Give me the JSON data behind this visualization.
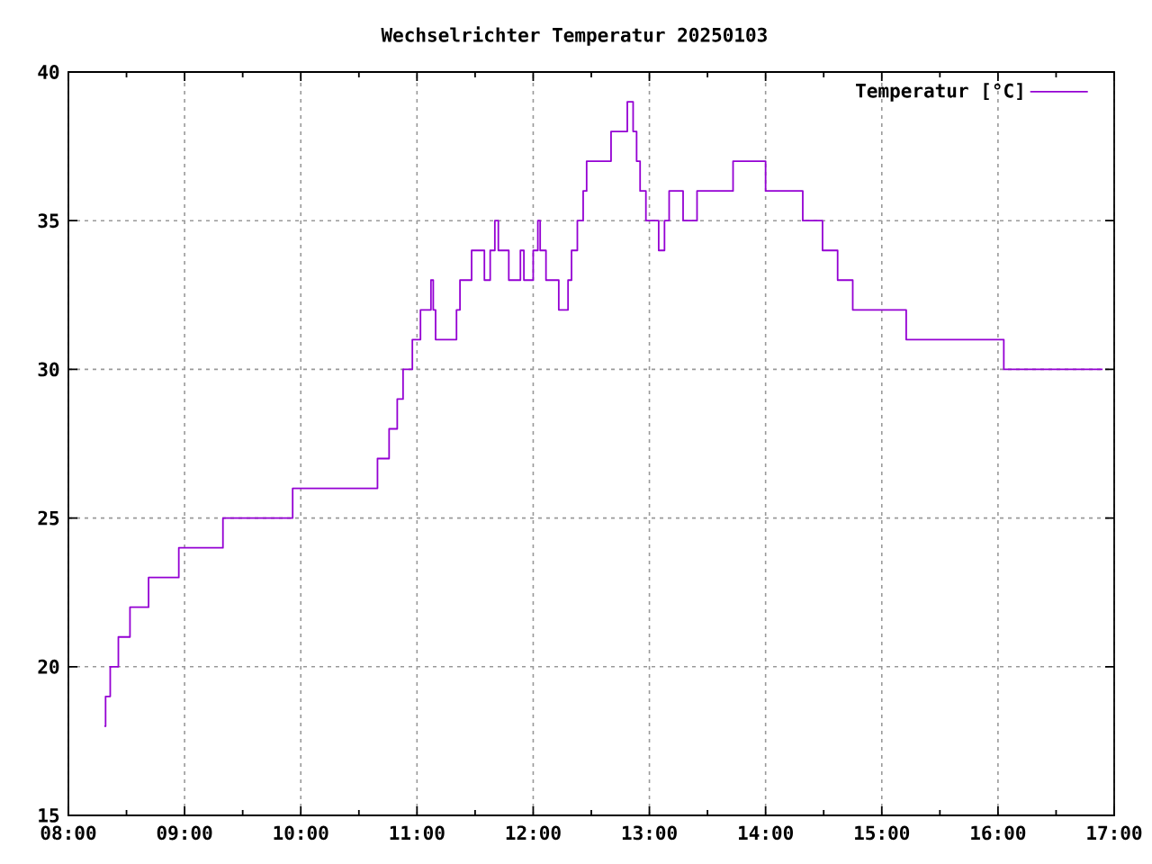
{
  "chart_data": {
    "type": "step",
    "title": "Wechselrichter Temperatur 20250103",
    "x": [
      8.31,
      8.32,
      8.36,
      8.43,
      8.53,
      8.69,
      8.95,
      9.33,
      9.93,
      10.66,
      10.76,
      10.83,
      10.88,
      10.96,
      11.03,
      11.12,
      11.14,
      11.16,
      11.34,
      11.37,
      11.47,
      11.58,
      11.63,
      11.67,
      11.7,
      11.79,
      11.89,
      11.92,
      12.0,
      12.04,
      12.06,
      12.11,
      12.22,
      12.3,
      12.33,
      12.38,
      12.43,
      12.46,
      12.67,
      12.81,
      12.86,
      12.89,
      12.92,
      12.97,
      13.08,
      13.13,
      13.17,
      13.29,
      13.41,
      13.72,
      14.0,
      14.32,
      14.49,
      14.62,
      14.75,
      15.21,
      16.05,
      16.9
    ],
    "series": [
      {
        "name": "Temperatur [°C]",
        "color": "#9400d3",
        "values": [
          18,
          19,
          20,
          21,
          22,
          23,
          24,
          25,
          26,
          27,
          28,
          29,
          30,
          31,
          32,
          33,
          32,
          31,
          32,
          33,
          34,
          33,
          34,
          35,
          34,
          33,
          34,
          33,
          34,
          35,
          34,
          33,
          32,
          33,
          34,
          35,
          36,
          37,
          38,
          39,
          38,
          37,
          36,
          35,
          34,
          35,
          36,
          35,
          36,
          37,
          36,
          35,
          34,
          33,
          32,
          31,
          30,
          30
        ]
      }
    ],
    "xlim": [
      8,
      17
    ],
    "xticks": [
      {
        "value": 8,
        "label": "08:00"
      },
      {
        "value": 8.5,
        "label": null
      },
      {
        "value": 9,
        "label": "09:00"
      },
      {
        "value": 9.5,
        "label": null
      },
      {
        "value": 10,
        "label": "10:00"
      },
      {
        "value": 10.5,
        "label": null
      },
      {
        "value": 11,
        "label": "11:00"
      },
      {
        "value": 11.5,
        "label": null
      },
      {
        "value": 12,
        "label": "12:00"
      },
      {
        "value": 12.5,
        "label": null
      },
      {
        "value": 13,
        "label": "13:00"
      },
      {
        "value": 13.5,
        "label": null
      },
      {
        "value": 14,
        "label": "14:00"
      },
      {
        "value": 14.5,
        "label": null
      },
      {
        "value": 15,
        "label": "15:00"
      },
      {
        "value": 15.5,
        "label": null
      },
      {
        "value": 16,
        "label": "16:00"
      },
      {
        "value": 16.5,
        "label": null
      },
      {
        "value": 17,
        "label": "17:00"
      }
    ],
    "ylim": [
      15,
      40
    ],
    "yticks": [
      15,
      20,
      25,
      30,
      35,
      40
    ],
    "grid": true,
    "legend": "top right"
  }
}
